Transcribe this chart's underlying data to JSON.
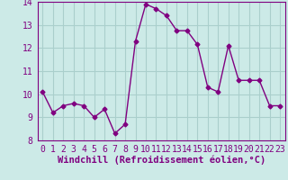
{
  "x": [
    0,
    1,
    2,
    3,
    4,
    5,
    6,
    7,
    8,
    9,
    10,
    11,
    12,
    13,
    14,
    15,
    16,
    17,
    18,
    19,
    20,
    21,
    22,
    23
  ],
  "y": [
    10.1,
    9.2,
    9.5,
    9.6,
    9.5,
    9.0,
    9.35,
    8.3,
    8.7,
    12.3,
    13.9,
    13.7,
    13.4,
    12.75,
    12.75,
    12.15,
    10.3,
    10.1,
    12.1,
    10.6,
    10.6,
    10.6,
    9.5,
    9.5
  ],
  "line_color": "#800080",
  "marker": "D",
  "marker_size": 2.5,
  "bg_color": "#cceae7",
  "grid_color": "#aacfcc",
  "xlabel": "Windchill (Refroidissement éolien,°C)",
  "xlim": [
    -0.5,
    23.5
  ],
  "ylim": [
    8,
    14
  ],
  "yticks": [
    8,
    9,
    10,
    11,
    12,
    13,
    14
  ],
  "xticks": [
    0,
    1,
    2,
    3,
    4,
    5,
    6,
    7,
    8,
    9,
    10,
    11,
    12,
    13,
    14,
    15,
    16,
    17,
    18,
    19,
    20,
    21,
    22,
    23
  ],
  "xlabel_fontsize": 7.5,
  "tick_fontsize": 7
}
